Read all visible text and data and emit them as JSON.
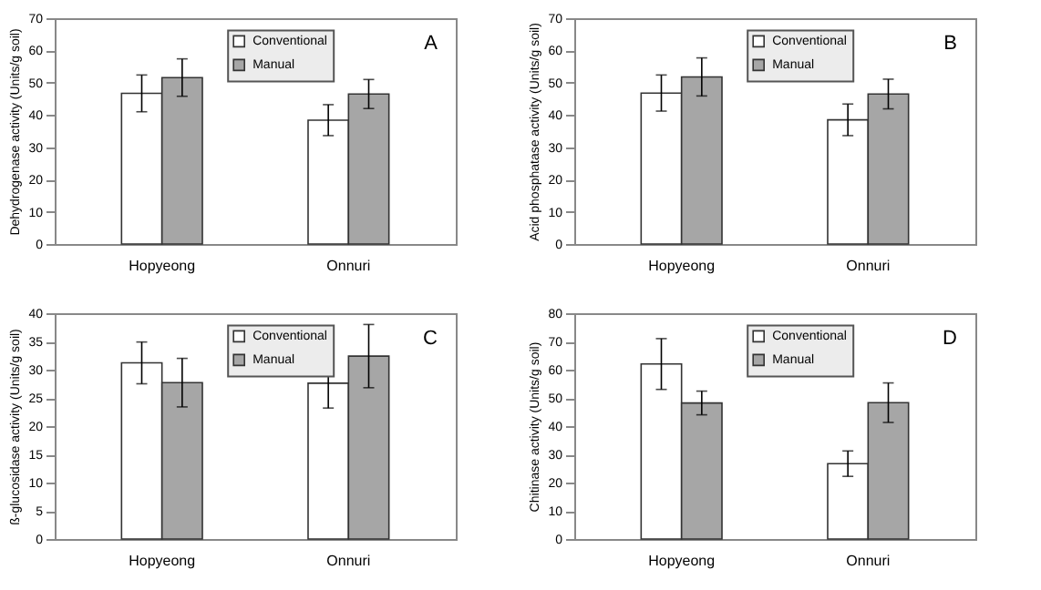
{
  "chart_data": [
    {
      "type": "bar",
      "ylabel": "Dehydrogenase activity (Units/g soil)",
      "categories": [
        "Hopyeong",
        "Onnuri"
      ],
      "ylim": [
        0,
        70
      ],
      "yticks": [
        0,
        10,
        20,
        30,
        40,
        50,
        60,
        70
      ],
      "legend": "top right",
      "grid": false,
      "annotations": [
        "A"
      ],
      "series": [
        {
          "name": "Conventional",
          "color": "#ffffff",
          "values": [
            46.7,
            38.4
          ],
          "errors": [
            5.7,
            4.8
          ]
        },
        {
          "name": "Manual",
          "color": "#a6a6a6",
          "values": [
            51.6,
            46.5
          ],
          "errors": [
            5.8,
            4.5
          ]
        }
      ]
    },
    {
      "type": "bar",
      "ylabel": "Acid phosphatase activity (Units/g soil)",
      "categories": [
        "Hopyeong",
        "Onnuri"
      ],
      "ylim": [
        0,
        70
      ],
      "yticks": [
        0,
        10,
        20,
        30,
        40,
        50,
        60,
        70
      ],
      "legend": "top right",
      "grid": false,
      "annotations": [
        "B"
      ],
      "series": [
        {
          "name": "Conventional",
          "color": "#ffffff",
          "values": [
            46.8,
            38.5
          ],
          "errors": [
            5.6,
            4.9
          ]
        },
        {
          "name": "Manual",
          "color": "#a6a6a6",
          "values": [
            51.8,
            46.5
          ],
          "errors": [
            5.9,
            4.6
          ]
        }
      ]
    },
    {
      "type": "bar",
      "ylabel": "ß-glucosidase activity (Units/g soil)",
      "categories": [
        "Hopyeong",
        "Onnuri"
      ],
      "ylim": [
        0,
        40
      ],
      "yticks": [
        0,
        5,
        10,
        15,
        20,
        25,
        30,
        35,
        40
      ],
      "legend": "top right",
      "grid": false,
      "annotations": [
        "C"
      ],
      "series": [
        {
          "name": "Conventional",
          "color": "#ffffff",
          "values": [
            31.2,
            27.6
          ],
          "errors": [
            3.7,
            4.4
          ]
        },
        {
          "name": "Manual",
          "color": "#a6a6a6",
          "values": [
            27.7,
            32.4
          ],
          "errors": [
            4.3,
            5.6
          ]
        }
      ]
    },
    {
      "type": "bar",
      "ylabel": "Chitinase activity (Units/g soil)",
      "categories": [
        "Hopyeong",
        "Onnuri"
      ],
      "ylim": [
        0,
        80
      ],
      "yticks": [
        0,
        10,
        20,
        30,
        40,
        50,
        60,
        70,
        80
      ],
      "legend": "top right",
      "grid": false,
      "annotations": [
        "D"
      ],
      "series": [
        {
          "name": "Conventional",
          "color": "#ffffff",
          "values": [
            62,
            26.7
          ],
          "errors": [
            9,
            4.5
          ]
        },
        {
          "name": "Manual",
          "color": "#a6a6a6",
          "values": [
            48.2,
            48.3
          ],
          "errors": [
            4.2,
            7
          ]
        }
      ]
    }
  ]
}
